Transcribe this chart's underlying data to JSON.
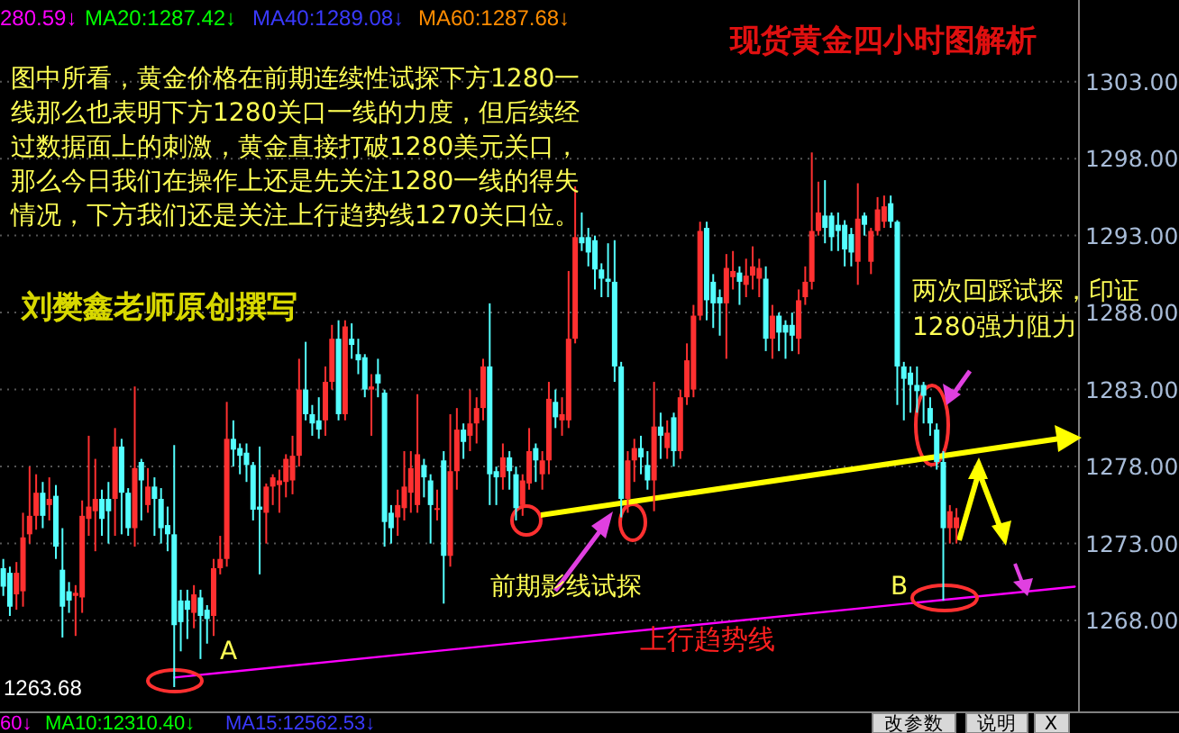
{
  "chart_data": {
    "type": "candlestick",
    "title": "现货黄金四小时图解析",
    "categories": [
      null,
      null,
      null,
      null,
      null,
      null,
      null,
      null,
      null,
      null,
      null,
      null,
      null,
      null,
      null,
      null,
      null,
      null,
      null,
      null,
      null,
      null,
      null,
      null,
      null,
      null,
      null,
      null,
      null,
      null,
      null,
      null,
      null,
      null,
      null,
      null,
      null,
      null,
      null,
      null,
      null,
      null,
      null,
      null,
      null,
      null,
      null,
      null,
      null,
      null,
      null,
      null,
      null,
      null,
      null,
      null,
      null,
      null,
      null,
      null,
      null,
      null,
      null,
      null,
      null,
      null,
      null,
      null,
      null,
      null,
      null,
      null,
      null,
      null,
      null,
      null,
      null,
      null,
      null,
      null,
      null,
      null,
      null,
      null,
      null,
      null,
      null,
      null,
      null,
      null,
      null,
      null,
      null,
      null,
      null,
      null,
      null,
      null,
      null,
      null,
      null,
      null,
      null,
      null,
      null,
      null,
      null,
      null,
      null,
      null,
      null,
      null,
      null,
      null,
      null,
      null,
      null,
      null,
      null,
      null,
      null,
      null,
      null,
      null,
      null,
      null,
      null,
      null,
      null,
      null,
      null,
      null,
      null,
      null,
      null,
      null,
      null,
      null,
      null,
      null,
      null,
      null,
      null,
      null,
      null,
      null,
      null,
      null,
      null,
      null,
      null,
      null,
      null,
      null,
      null,
      null,
      null,
      null,
      null,
      null,
      null,
      null,
      null,
      null
    ],
    "ohlc": [
      [
        1271.4,
        1272.0,
        1269.6,
        1270.2
      ],
      [
        1271.1,
        1271.5,
        1268.3,
        1268.9
      ],
      [
        1269.7,
        1271.8,
        1268.7,
        1271.1
      ],
      [
        1269.9,
        1275.0,
        1268.9,
        1273.4
      ],
      [
        1273.6,
        1278.0,
        1273.0,
        1274.8
      ],
      [
        1274.8,
        1277.5,
        1273.9,
        1276.3
      ],
      [
        1276.3,
        1277.0,
        1274.0,
        1274.8
      ],
      [
        1275.5,
        1277.3,
        1274.5,
        1275.9
      ],
      [
        1276.1,
        1276.8,
        1272.0,
        1272.8
      ],
      [
        1271.3,
        1274.0,
        1266.9,
        1268.9
      ],
      [
        1269.9,
        1270.5,
        1268.5,
        1269.3
      ],
      [
        1269.6,
        1270.3,
        1267.0,
        1269.8
      ],
      [
        1269.5,
        1275.8,
        1268.5,
        1274.8
      ],
      [
        1274.6,
        1280.0,
        1273.5,
        1275.4
      ],
      [
        1275.1,
        1278.5,
        1272.5,
        1275.9
      ],
      [
        1275.9,
        1276.5,
        1273.5,
        1274.6
      ],
      [
        1275.9,
        1277.0,
        1273.0,
        1275.1
      ],
      [
        1275.9,
        1280.5,
        1273.5,
        1279.3
      ],
      [
        1279.3,
        1279.8,
        1273.6,
        1276.3
      ],
      [
        1276.3,
        1276.6,
        1273.5,
        1274.0
      ],
      [
        1274.0,
        1283.2,
        1272.8,
        1277.9
      ],
      [
        1278.3,
        1278.5,
        1274.5,
        1277.1
      ],
      [
        1275.5,
        1277.9,
        1275.0,
        1276.7
      ],
      [
        1276.7,
        1277.3,
        1273.5,
        1275.9
      ],
      [
        1275.9,
        1276.6,
        1273.0,
        1274.0
      ],
      [
        1274.2,
        1275.4,
        1272.5,
        1273.6
      ],
      [
        1273.6,
        1279.4,
        1263.68,
        1267.7
      ],
      [
        1269.3,
        1270.0,
        1266.0,
        1267.9
      ],
      [
        1269.3,
        1270.0,
        1266.8,
        1268.7
      ],
      [
        1268.5,
        1270.3,
        1267.5,
        1269.7
      ],
      [
        1269.5,
        1270.0,
        1265.5,
        1268.3
      ],
      [
        1268.7,
        1269.0,
        1266.5,
        1268.1
      ],
      [
        1268.3,
        1272.0,
        1267.0,
        1271.4
      ],
      [
        1271.4,
        1273.5,
        1271.0,
        1272.0
      ],
      [
        1272.0,
        1282.2,
        1271.5,
        1279.8
      ],
      [
        1279.8,
        1281.0,
        1278.0,
        1279.1
      ],
      [
        1279.2,
        1279.5,
        1277.5,
        1278.7
      ],
      [
        1278.9,
        1279.5,
        1277.0,
        1278.1
      ],
      [
        1278.1,
        1278.3,
        1274.5,
        1275.2
      ],
      [
        1275.4,
        1279.3,
        1271.0,
        1275.2
      ],
      [
        1275.0,
        1276.9,
        1273.0,
        1276.7
      ],
      [
        1276.7,
        1277.5,
        1275.5,
        1277.3
      ],
      [
        1276.8,
        1277.8,
        1275.0,
        1277.1
      ],
      [
        1277.0,
        1278.8,
        1276.0,
        1278.5
      ],
      [
        1277.1,
        1280.0,
        1276.2,
        1278.7
      ],
      [
        1278.7,
        1285.0,
        1278.0,
        1283.0
      ],
      [
        1283.0,
        1286.1,
        1281.0,
        1281.4
      ],
      [
        1281.4,
        1282.0,
        1280.0,
        1280.8
      ],
      [
        1281.0,
        1282.5,
        1279.8,
        1280.4
      ],
      [
        1281.0,
        1284.5,
        1280.0,
        1283.5
      ],
      [
        1283.5,
        1287.2,
        1283.0,
        1286.3
      ],
      [
        1286.3,
        1287.5,
        1281.0,
        1281.4
      ],
      [
        1281.4,
        1287.5,
        1281.0,
        1287.1
      ],
      [
        1286.3,
        1287.3,
        1285.0,
        1285.9
      ],
      [
        1285.3,
        1286.3,
        1284.0,
        1284.9
      ],
      [
        1285.1,
        1285.3,
        1282.5,
        1283.0
      ],
      [
        1283.0,
        1284.0,
        1280.0,
        1283.2
      ],
      [
        1284.0,
        1285.0,
        1282.5,
        1283.4
      ],
      [
        1282.8,
        1283.0,
        1272.8,
        1274.4
      ],
      [
        1275.0,
        1275.5,
        1273.0,
        1274.0
      ],
      [
        1274.7,
        1276.5,
        1273.5,
        1275.5
      ],
      [
        1275.3,
        1279.0,
        1274.5,
        1276.7
      ],
      [
        1276.3,
        1279.0,
        1275.0,
        1277.9
      ],
      [
        1275.5,
        1282.7,
        1275.0,
        1278.8
      ],
      [
        1278.1,
        1278.5,
        1276.0,
        1277.3
      ],
      [
        1277.1,
        1277.5,
        1273.0,
        1275.5
      ],
      [
        1275.3,
        1276.5,
        1274.5,
        1275.3
      ],
      [
        1278.4,
        1279.0,
        1269.1,
        1272.2
      ],
      [
        1272.2,
        1281.4,
        1271.5,
        1277.7
      ],
      [
        1277.7,
        1281.8,
        1276.5,
        1280.4
      ],
      [
        1280.4,
        1280.8,
        1278.5,
        1279.6
      ],
      [
        1280.0,
        1283.0,
        1279.0,
        1280.8
      ],
      [
        1280.8,
        1282.5,
        1279.5,
        1281.8
      ],
      [
        1281.8,
        1285.0,
        1281.0,
        1284.5
      ],
      [
        1284.5,
        1288.6,
        1275.5,
        1277.5
      ],
      [
        1277.7,
        1278.0,
        1275.5,
        1277.3
      ],
      [
        1277.3,
        1279.5,
        1276.5,
        1278.6
      ],
      [
        1278.6,
        1279.0,
        1276.5,
        1277.7
      ],
      [
        1277.5,
        1278.0,
        1274.5,
        1275.3
      ],
      [
        1275.5,
        1277.5,
        1274.8,
        1277.1
      ],
      [
        1276.9,
        1280.5,
        1276.5,
        1279.0
      ],
      [
        1279.2,
        1279.5,
        1277.0,
        1278.4
      ],
      [
        1277.5,
        1279.0,
        1276.5,
        1278.4
      ],
      [
        1278.4,
        1283.5,
        1277.5,
        1282.4
      ],
      [
        1282.2,
        1283.0,
        1280.5,
        1281.2
      ],
      [
        1281.0,
        1282.5,
        1280.0,
        1281.4
      ],
      [
        1281.0,
        1290.7,
        1280.5,
        1286.3
      ],
      [
        1286.3,
        1296.2,
        1286.0,
        1292.9
      ],
      [
        1292.9,
        1294.5,
        1292.0,
        1292.5
      ],
      [
        1292.9,
        1293.5,
        1291.0,
        1291.9
      ],
      [
        1292.7,
        1293.0,
        1289.5,
        1290.8
      ],
      [
        1290.8,
        1291.2,
        1289.0,
        1290.2
      ],
      [
        1290.2,
        1292.5,
        1289.0,
        1290.0
      ],
      [
        1290.0,
        1292.7,
        1283.5,
        1284.5
      ],
      [
        1284.5,
        1284.8,
        1274.7,
        1275.9
      ],
      [
        1275.9,
        1279.0,
        1275.0,
        1278.4
      ],
      [
        1278.4,
        1279.8,
        1277.0,
        1279.2
      ],
      [
        1279.2,
        1280.0,
        1277.5,
        1278.6
      ],
      [
        1278.1,
        1279.0,
        1276.5,
        1277.1
      ],
      [
        1277.1,
        1283.5,
        1275.1,
        1280.6
      ],
      [
        1280.6,
        1281.5,
        1278.5,
        1280.0
      ],
      [
        1279.2,
        1281.0,
        1278.5,
        1280.2
      ],
      [
        1281.2,
        1281.5,
        1278.0,
        1279.0
      ],
      [
        1279.0,
        1283.0,
        1278.5,
        1282.5
      ],
      [
        1282.5,
        1286.0,
        1282.0,
        1284.9
      ],
      [
        1283.0,
        1288.5,
        1282.5,
        1287.8
      ],
      [
        1287.8,
        1293.9,
        1287.5,
        1293.3
      ],
      [
        1293.5,
        1293.9,
        1287.5,
        1288.8
      ],
      [
        1290.0,
        1290.5,
        1287.0,
        1288.6
      ],
      [
        1289.0,
        1289.5,
        1286.5,
        1288.6
      ],
      [
        1288.6,
        1291.8,
        1285.0,
        1290.9
      ],
      [
        1290.3,
        1292.0,
        1289.5,
        1290.7
      ],
      [
        1290.6,
        1291.0,
        1288.5,
        1290.0
      ],
      [
        1289.8,
        1291.5,
        1289.0,
        1290.4
      ],
      [
        1290.4,
        1292.3,
        1289.5,
        1291.0
      ],
      [
        1290.2,
        1291.5,
        1289.0,
        1290.9
      ],
      [
        1290.2,
        1291.0,
        1285.5,
        1286.3
      ],
      [
        1286.3,
        1288.5,
        1285.0,
        1287.8
      ],
      [
        1287.8,
        1288.0,
        1285.5,
        1286.7
      ],
      [
        1287.2,
        1287.5,
        1285.0,
        1286.7
      ],
      [
        1287.2,
        1288.0,
        1285.5,
        1286.5
      ],
      [
        1286.3,
        1289.5,
        1285.3,
        1288.8
      ],
      [
        1289.0,
        1291.0,
        1288.5,
        1290.0
      ],
      [
        1290.0,
        1298.4,
        1289.5,
        1293.3
      ],
      [
        1293.3,
        1296.5,
        1293.0,
        1294.5
      ],
      [
        1294.3,
        1296.6,
        1292.5,
        1293.5
      ],
      [
        1294.3,
        1294.5,
        1292.0,
        1292.9
      ],
      [
        1293.7,
        1294.5,
        1292.0,
        1293.3
      ],
      [
        1293.7,
        1294.0,
        1291.0,
        1292.1
      ],
      [
        1293.1,
        1293.5,
        1291.0,
        1291.9
      ],
      [
        1291.3,
        1296.4,
        1289.8,
        1294.1
      ],
      [
        1294.3,
        1294.5,
        1293.0,
        1293.7
      ],
      [
        1291.3,
        1293.5,
        1290.5,
        1293.3
      ],
      [
        1293.3,
        1295.5,
        1293.0,
        1294.7
      ],
      [
        1293.9,
        1295.6,
        1293.5,
        1294.9
      ],
      [
        1295.1,
        1295.6,
        1293.5,
        1293.9
      ],
      [
        1293.9,
        1294.0,
        1282.0,
        1284.5
      ],
      [
        1284.5,
        1284.8,
        1281.0,
        1283.7
      ],
      [
        1284.1,
        1284.5,
        1281.5,
        1283.3
      ],
      [
        1283.3,
        1284.5,
        1281.5,
        1282.9
      ],
      [
        1283.3,
        1283.5,
        1280.8,
        1282.6
      ],
      [
        1281.8,
        1282.5,
        1280.0,
        1280.8
      ],
      [
        1280.4,
        1280.8,
        1277.8,
        1278.3
      ],
      [
        1278.3,
        1279.0,
        1269.3,
        1274.0
      ],
      [
        1274.0,
        1275.5,
        1273.0,
        1275.1
      ],
      [
        1274.0,
        1275.3,
        1273.0,
        1274.7
      ],
      null,
      null,
      null,
      null,
      null,
      null,
      null,
      null,
      null,
      null,
      null,
      null,
      null,
      null,
      null,
      null,
      null,
      null
    ],
    "ylim": [
      1262.1,
      1308.3
    ],
    "yticks": [
      {
        "value": 1268,
        "label": "1268.00"
      },
      {
        "value": 1273,
        "label": "1273.00"
      },
      {
        "value": 1278,
        "label": "1278.00"
      },
      {
        "value": 1283,
        "label": "1283.00"
      },
      {
        "value": 1288,
        "label": "1288.00"
      },
      {
        "value": 1293,
        "label": "1293.00"
      },
      {
        "value": 1298,
        "label": "1298.00"
      },
      {
        "value": 1303,
        "label": "1303.00"
      }
    ],
    "tick_labels": "y",
    "grid": "y",
    "series": [
      {
        "type": "line",
        "values": [
          null,
          null,
          null,
          null,
          null,
          null,
          null,
          null,
          null,
          null,
          null,
          null,
          null,
          null,
          null,
          null,
          null,
          null,
          null,
          null,
          null,
          null,
          null,
          null,
          null,
          null,
          1264.3,
          null,
          null,
          null,
          null,
          null,
          null,
          null,
          null,
          null,
          null,
          null,
          null,
          null,
          null,
          null,
          null,
          null,
          null,
          null,
          null,
          null,
          null,
          null,
          null,
          null,
          null,
          null,
          null,
          null,
          null,
          null,
          null,
          null,
          null,
          null,
          null,
          null,
          null,
          null,
          null,
          null,
          null,
          null,
          null,
          null,
          null,
          null,
          null,
          null,
          null,
          null,
          null,
          null,
          null,
          null,
          null,
          null,
          null,
          null,
          null,
          null,
          null,
          null,
          null,
          null,
          null,
          null,
          null,
          null,
          null,
          null,
          null,
          null,
          null,
          null,
          null,
          null,
          null,
          null,
          null,
          null,
          null,
          null,
          null,
          null,
          null,
          null,
          null,
          null,
          null,
          null,
          null,
          null,
          null,
          null,
          null,
          null,
          null,
          null,
          null,
          null,
          null,
          null,
          null,
          null,
          null,
          null,
          null,
          null,
          null,
          null,
          null,
          null,
          null,
          null,
          null,
          null,
          null,
          null,
          null,
          null,
          null,
          null,
          null,
          null,
          null,
          null,
          null,
          null,
          null,
          null,
          null,
          null,
          null,
          null,
          null,
          1270.2
        ],
        "color": "#ff00ff"
      }
    ],
    "annotations": [
      "280.59↓",
      "MA20:1287.42↓",
      "MA40:1289.08↓",
      "MA60:1287.68↓",
      "图中所看，黄金价格在前期连续性试探下方1280一线那么也表明下方1280关口一线的力度，但后续经过数据面上的刺激，黄金直接打破1280美元关口，那么今日我们在操作上还是先关注1280一线的得失情况，下方我们还是关注上行趋势线1270关口位。",
      "刘樊鑫老师原创撰写",
      "两次回踩试探，印证1280强力阻力",
      "前期影线试探",
      "上行趋势线",
      "A",
      "B",
      "1263.68",
      "60↓",
      "MA10:12310.40↓",
      "MA15:12562.53↓",
      "改参数",
      "说明",
      "X"
    ]
  }
}
